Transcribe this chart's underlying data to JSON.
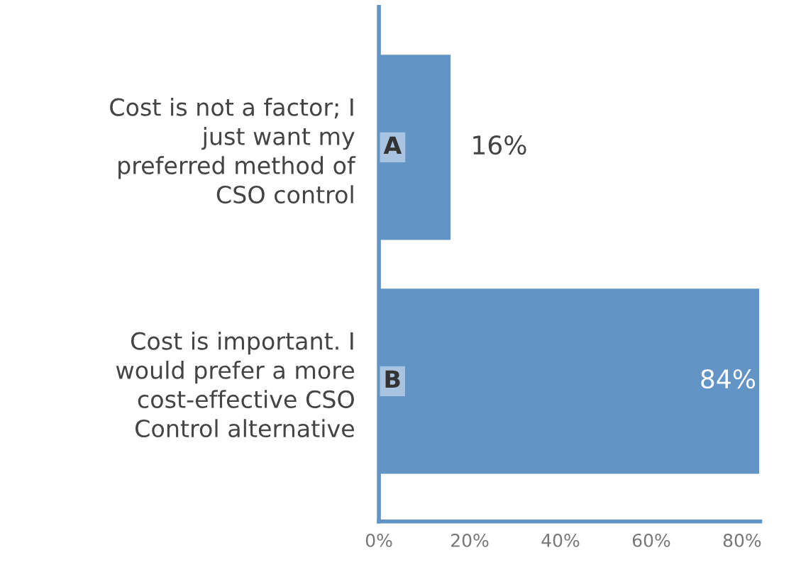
{
  "chart_data": {
    "type": "bar",
    "orientation": "horizontal",
    "categories": [
      "Cost is not a factor; I\njust want my\npreferred method of\nCSO control",
      "Cost is important. I\nwould prefer a more\ncost-effective CSO\nControl alternative"
    ],
    "values": [
      16,
      84
    ],
    "value_labels": [
      "16%",
      "84%"
    ],
    "color": "#6394c6",
    "xlim": [
      0,
      84
    ],
    "xticks": [
      {
        "value": 0,
        "label": "0%"
      },
      {
        "value": 20,
        "label": "20%"
      },
      {
        "value": 40,
        "label": "40%"
      },
      {
        "value": 60,
        "label": "60%"
      },
      {
        "value": 80,
        "label": "80%"
      }
    ],
    "annotations": [
      {
        "text": "A",
        "x": 0,
        "y": "Cost is not a factor; I\njust want my\npreferred method of\nCSO control"
      },
      {
        "text": "B",
        "x": 0,
        "y": "Cost is important. I\nwould prefer a more\ncost-effective CSO\nControl alternative"
      }
    ],
    "grid": false,
    "legend": false
  }
}
